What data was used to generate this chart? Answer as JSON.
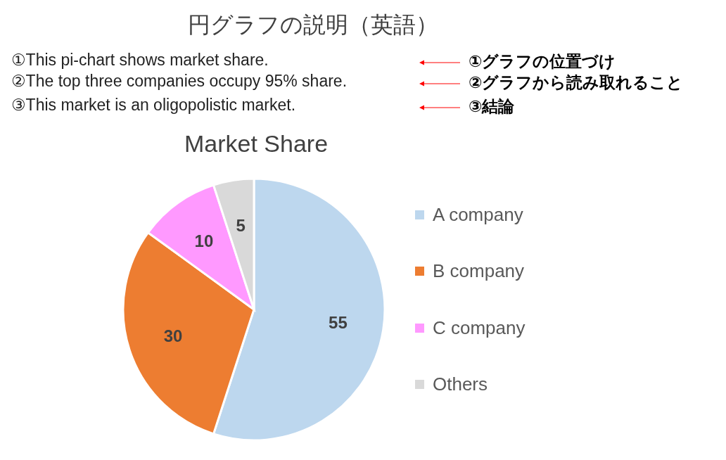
{
  "chart_data": {
    "type": "pie",
    "title": "Market Share",
    "annotations": [
      "円グラフの説明（英語）",
      "①This pi-chart shows market share.",
      "②The top three companies occupy 95% share.",
      "③This market is an oligopolistic market.",
      "①グラフの位置づけ",
      "②グラフから読み取れること",
      "③結論"
    ],
    "categories": [
      "A company",
      "B company",
      "C company",
      "Others"
    ],
    "values": [
      55,
      30,
      10,
      5
    ],
    "colors": [
      "#bdd7ee",
      "#ed7d31",
      "#ff99ff",
      "#d9d9d9"
    ],
    "data_labels": true,
    "legend": "right"
  }
}
